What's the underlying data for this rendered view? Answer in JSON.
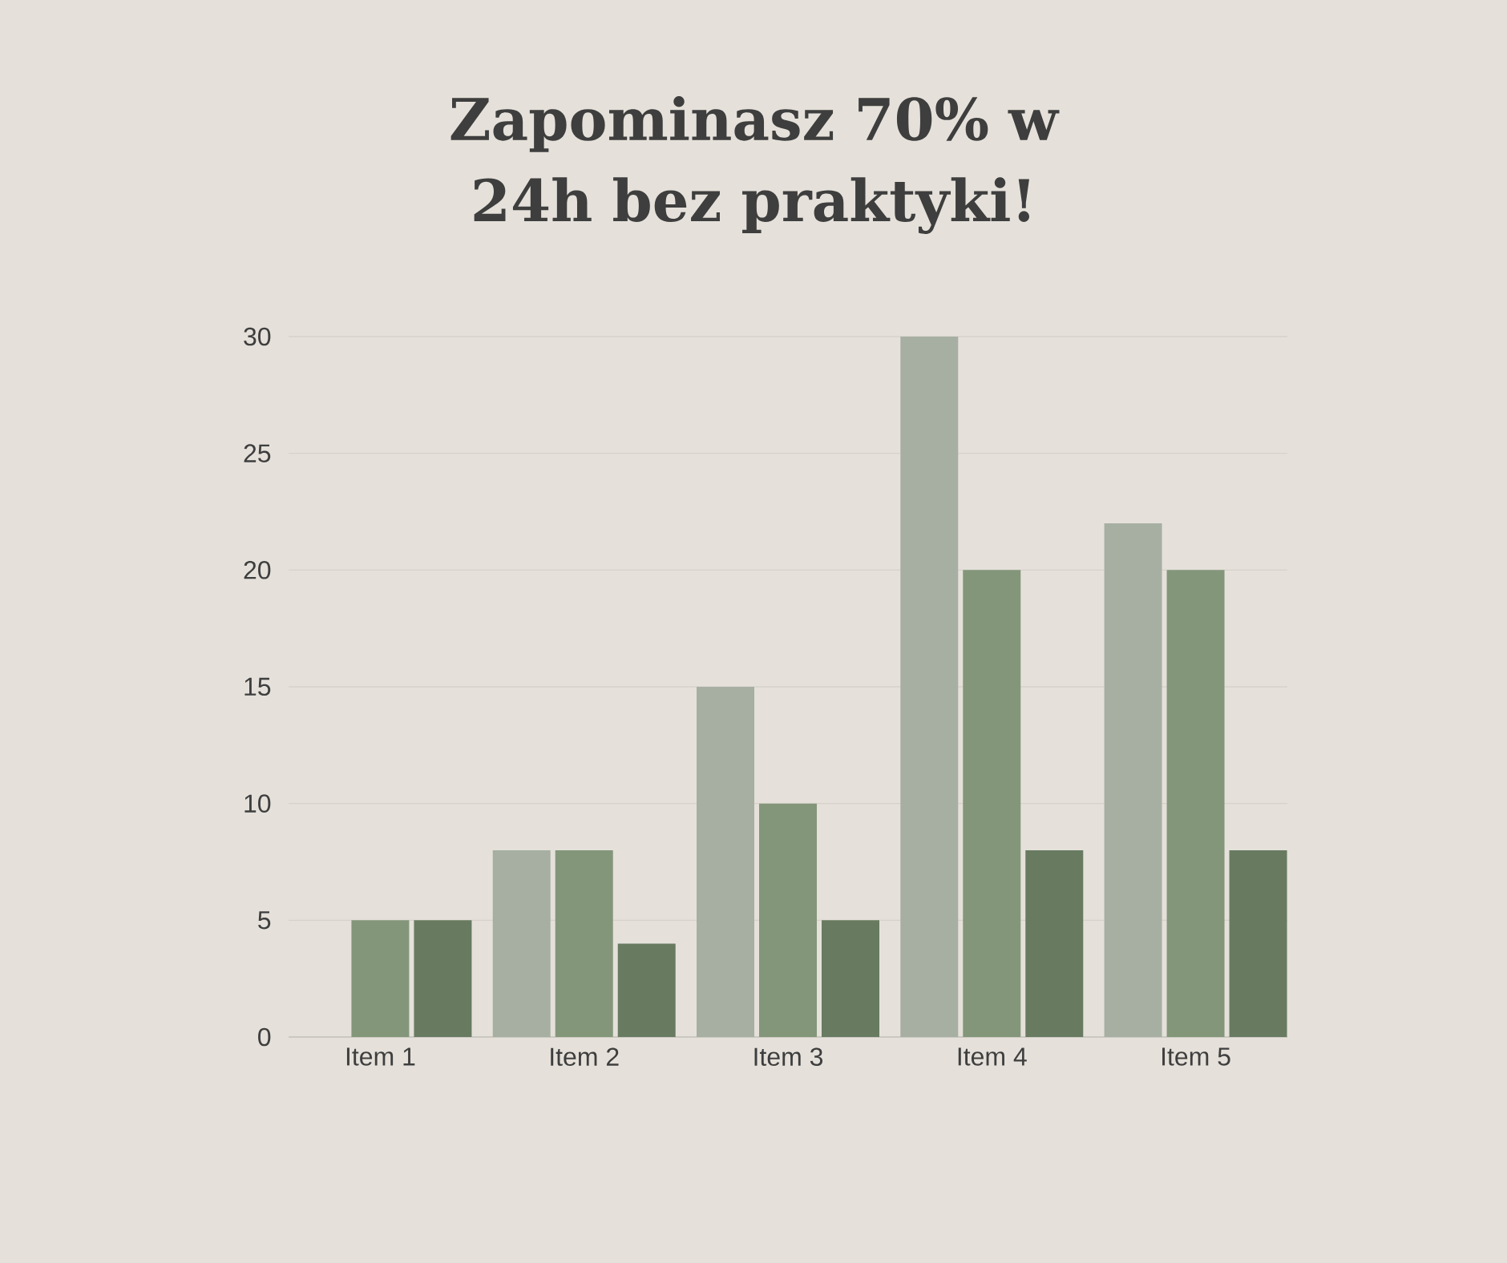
{
  "chart_data": {
    "type": "bar",
    "title": "Zapominasz 70% w 24h bez praktyki!",
    "categories": [
      "Item 1",
      "Item 2",
      "Item 3",
      "Item 4",
      "Item 5"
    ],
    "series": [
      {
        "color": "#a7afa3",
        "values": [
          0,
          8,
          15,
          30,
          22
        ]
      },
      {
        "color": "#83967a",
        "values": [
          5,
          8,
          10,
          20,
          20
        ]
      },
      {
        "color": "#687b61",
        "values": [
          5,
          4,
          5,
          8,
          8
        ]
      }
    ],
    "ylim": [
      0,
      30
    ],
    "yticks": [
      0,
      5,
      10,
      15,
      20,
      25,
      30
    ],
    "grid": "y"
  }
}
